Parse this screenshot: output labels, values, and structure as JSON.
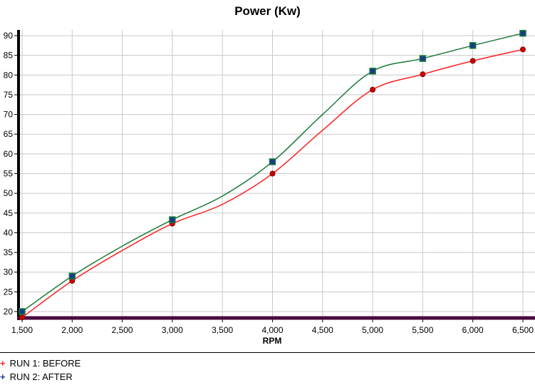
{
  "chart_data": {
    "type": "line",
    "title": "Power (Kw)",
    "xlabel": "RPM",
    "ylabel": "",
    "xlim": [
      1500,
      6500
    ],
    "ylim": [
      18.5,
      91
    ],
    "xticks": [
      1500,
      2000,
      2500,
      3000,
      3500,
      4000,
      4500,
      5000,
      5500,
      6000,
      6500
    ],
    "xtick_labels": [
      "1,500",
      "2,000",
      "2,500",
      "3,000",
      "3,500",
      "4,000",
      "4,500",
      "5,000",
      "5,500",
      "6,000",
      "6,500"
    ],
    "yticks": [
      20,
      25,
      30,
      35,
      40,
      45,
      50,
      55,
      60,
      65,
      70,
      75,
      80,
      85,
      90
    ],
    "grid": true,
    "legend_position": "bottom-left",
    "series": [
      {
        "name": "RUN 1: BEFORE",
        "color": "#ff2020",
        "marker_color": "#cc0000",
        "x": [
          1500,
          2000,
          2500,
          3000,
          3500,
          4000,
          4500,
          5000,
          5500,
          6000,
          6500
        ],
        "y": [
          18.5,
          27.8,
          35.5,
          42.3,
          47.2,
          55,
          66,
          76.3,
          80.2,
          83.6,
          86.5
        ],
        "markers": [
          1500,
          2000,
          3000,
          4000,
          5000,
          5500,
          6000,
          6500
        ]
      },
      {
        "name": "RUN 2: AFTER",
        "color": "#1a7a3a",
        "marker_color": "#1a3a8a",
        "x": [
          1500,
          2000,
          2500,
          3000,
          3500,
          4000,
          4500,
          5000,
          5500,
          6000,
          6500
        ],
        "y": [
          20,
          29,
          36.6,
          43.3,
          49.3,
          58,
          70,
          81,
          84.2,
          87.5,
          90.6
        ],
        "markers": [
          1500,
          2000,
          3000,
          4000,
          5000,
          5500,
          6000,
          6500
        ]
      }
    ]
  }
}
